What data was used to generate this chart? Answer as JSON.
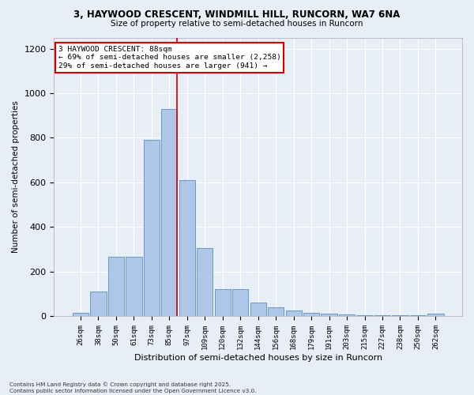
{
  "title_line1": "3, HAYWOOD CRESCENT, WINDMILL HILL, RUNCORN, WA7 6NA",
  "title_line2": "Size of property relative to semi-detached houses in Runcorn",
  "xlabel": "Distribution of semi-detached houses by size in Runcorn",
  "ylabel": "Number of semi-detached properties",
  "categories": [
    "26sqm",
    "38sqm",
    "50sqm",
    "61sqm",
    "73sqm",
    "85sqm",
    "97sqm",
    "109sqm",
    "120sqm",
    "132sqm",
    "144sqm",
    "156sqm",
    "168sqm",
    "179sqm",
    "191sqm",
    "203sqm",
    "215sqm",
    "227sqm",
    "238sqm",
    "250sqm",
    "262sqm"
  ],
  "values": [
    15,
    110,
    265,
    265,
    790,
    930,
    610,
    305,
    120,
    120,
    60,
    40,
    25,
    15,
    10,
    8,
    5,
    3,
    2,
    2,
    10
  ],
  "bar_color": "#aec6e8",
  "bar_edge_color": "#5a8fc0",
  "vline_x_index": 5,
  "vline_color": "#cc0000",
  "annotation_line1": "3 HAYWOOD CRESCENT: 88sqm",
  "annotation_line2": "← 69% of semi-detached houses are smaller (2,258)",
  "annotation_line3": "29% of semi-detached houses are larger (941) →",
  "annotation_box_color": "#ffffff",
  "annotation_box_edge": "#cc0000",
  "footer_text": "Contains HM Land Registry data © Crown copyright and database right 2025.\nContains public sector information licensed under the Open Government Licence v3.0.",
  "ylim": [
    0,
    1250
  ],
  "bg_color": "#e8eef5",
  "plot_bg_color": "#e8eef5",
  "grid_color": "#ffffff"
}
